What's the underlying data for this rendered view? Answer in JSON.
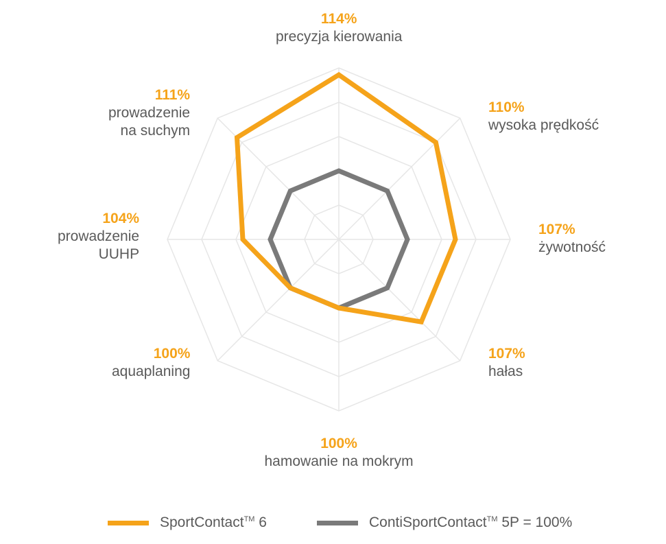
{
  "chart_data": {
    "type": "radar",
    "title": "",
    "categories": [
      {
        "pct": "114%",
        "name": [
          "precyzja kierowania"
        ]
      },
      {
        "pct": "110%",
        "name": [
          "wysoka prędkość"
        ]
      },
      {
        "pct": "107%",
        "name": [
          "żywotność"
        ]
      },
      {
        "pct": "107%",
        "name": [
          "hałas"
        ]
      },
      {
        "pct": "100%",
        "name": [
          "hamowanie na mokrym"
        ]
      },
      {
        "pct": "100%",
        "name": [
          "aquaplaning"
        ]
      },
      {
        "pct": "104%",
        "name": [
          "prowadzenie",
          "UUHP"
        ]
      },
      {
        "pct": "111%",
        "name": [
          "prowadzenie",
          "na suchym"
        ]
      }
    ],
    "series": [
      {
        "name": "SportContact™ 6",
        "color": "#f5a31a",
        "values": [
          114,
          110,
          107,
          107,
          100,
          100,
          104,
          111
        ]
      },
      {
        "name": "ContiSportContact™ 5P = 100%",
        "color": "#7a7a7a",
        "values": [
          100,
          100,
          100,
          100,
          100,
          100,
          100,
          100
        ]
      }
    ],
    "scale": {
      "min": 90,
      "max": 115
    },
    "grid": true,
    "legend_position": "bottom"
  },
  "legend": {
    "item1_main": "SportContact",
    "item1_sup": "TM",
    "item1_tail": " 6",
    "item2_main": "ContiSportContact",
    "item2_sup": "TM",
    "item2_tail": " 5P = 100%"
  }
}
